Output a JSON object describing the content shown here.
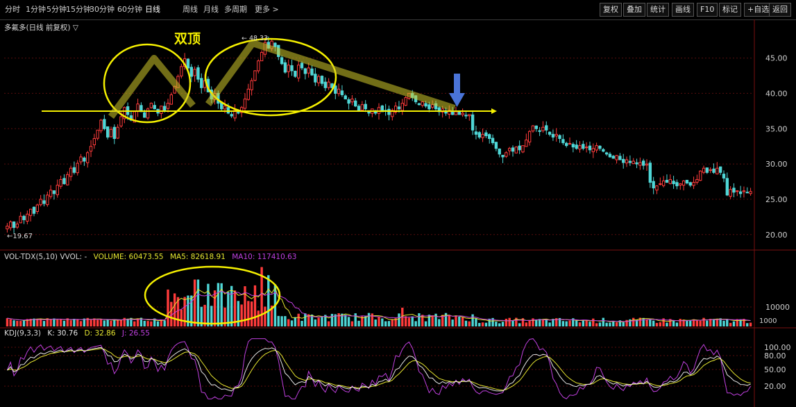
{
  "toolbar": {
    "periods": [
      "分时",
      "1分钟",
      "5分钟",
      "15分钟",
      "30分钟",
      "60分钟",
      "日线",
      "周线",
      "月线",
      "多周期",
      "更多 >"
    ],
    "active_period": "日线",
    "right_buttons": [
      "复权",
      "叠加",
      "统计",
      "画线",
      "F10",
      "标记",
      "+自选",
      "返回"
    ]
  },
  "main_panel": {
    "title": "多氟多(日线 前复权) ▽",
    "annotation": "双顶",
    "high_label": "← 48.33",
    "low_label": "←19.67"
  },
  "vol_panel": {
    "title_prefix": "VOL-TDX(5,10) VVOL: -",
    "volume_text": "VOLUME: 60473.55",
    "ma5_text": "MA5: 82618.91",
    "ma10_text": "MA10: 117410.63"
  },
  "kdj_panel": {
    "title_prefix": "KDJ(9,3,3)",
    "k_text": "K: 30.76",
    "d_text": "D: 32.86",
    "j_text": "J: 26.55"
  },
  "colors": {
    "up": "#ff3b3b",
    "down": "#4fd6d6",
    "grid": "#5a0d0d",
    "annotation": "#f5f000",
    "arrow": "#4a74d8",
    "k_line": "#e8e8e8",
    "d_line": "#e6e630",
    "j_line": "#c040e0"
  },
  "chart_data": {
    "type": "candlestick",
    "price_axis": {
      "ticks": [
        45.0,
        40.0,
        35.0,
        30.0,
        25.0,
        20.0
      ],
      "ylim": [
        18.6,
        48.5
      ]
    },
    "vol_axis": {
      "ticks": [
        "10000",
        "1000"
      ]
    },
    "kdj_axis": {
      "ticks": [
        "100.00",
        "80.00",
        "50.00",
        "20.00"
      ],
      "ylim": [
        -5,
        110
      ]
    },
    "closes": [
      21.2,
      21.8,
      21.0,
      21.5,
      22.6,
      22.1,
      22.9,
      23.6,
      23.0,
      24.2,
      25.0,
      24.4,
      25.6,
      26.3,
      25.8,
      27.0,
      27.8,
      27.2,
      28.5,
      29.4,
      28.8,
      30.1,
      31.0,
      30.4,
      31.6,
      32.5,
      33.6,
      34.8,
      36.2,
      35.0,
      33.8,
      34.9,
      33.6,
      35.2,
      36.7,
      38.0,
      37.0,
      36.2,
      37.4,
      38.5,
      37.4,
      36.6,
      37.8,
      38.6,
      37.8,
      37.2,
      38.2,
      37.6,
      38.6,
      39.8,
      41.0,
      42.4,
      43.8,
      44.9,
      43.6,
      42.4,
      43.4,
      42.0,
      40.8,
      41.8,
      40.2,
      39.2,
      40.0,
      38.6,
      37.8,
      38.2,
      37.2,
      36.8,
      37.6,
      37.2,
      38.0,
      39.2,
      40.6,
      41.8,
      43.2,
      44.6,
      45.8,
      47.2,
      46.4,
      47.4,
      46.6,
      45.2,
      44.2,
      43.0,
      44.0,
      43.2,
      42.4,
      44.0,
      43.6,
      42.8,
      43.6,
      42.6,
      41.6,
      42.4,
      41.4,
      40.8,
      41.6,
      40.8,
      40.0,
      40.6,
      39.8,
      39.2,
      38.6,
      39.2,
      38.2,
      37.6,
      38.4,
      37.8,
      37.2,
      37.8,
      37.2,
      38.0,
      37.4,
      37.6,
      37.0,
      37.6,
      38.2,
      37.8,
      38.6,
      39.4,
      40.0,
      39.4,
      38.8,
      38.4,
      38.8,
      38.2,
      37.8,
      38.4,
      37.8,
      37.4,
      37.8,
      37.2,
      37.6,
      37.0,
      37.4,
      37.0,
      37.2,
      36.8,
      37.0,
      34.8,
      34.2,
      33.8,
      34.2,
      34.0,
      33.6,
      33.0,
      32.2,
      31.4,
      31.0,
      31.6,
      32.2,
      31.8,
      32.4,
      32.0,
      32.6,
      33.4,
      34.6,
      35.4,
      35.0,
      34.6,
      35.2,
      34.8,
      34.2,
      33.8,
      34.2,
      33.6,
      33.0,
      32.6,
      32.9,
      32.4,
      32.2,
      32.6,
      32.2,
      32.4,
      32.0,
      32.2,
      32.6,
      32.2,
      31.8,
      31.4,
      31.0,
      30.8,
      31.2,
      30.6,
      30.2,
      30.6,
      30.2,
      30.4,
      30.0,
      30.2,
      29.8,
      30.0,
      27.4,
      26.6,
      26.9,
      27.2,
      27.6,
      27.4,
      27.8,
      27.2,
      26.9,
      27.2,
      27.6,
      27.3,
      27.0,
      27.4,
      27.8,
      29.0,
      29.4,
      28.8,
      29.2,
      28.8,
      29.4,
      28.8,
      28.0,
      25.6,
      26.4,
      26.0,
      26.2,
      25.8,
      26.2,
      25.9,
      26.1
    ],
    "high_value": 48.33,
    "low_value": 19.67,
    "volume": {
      "VOLUME": 60473.55,
      "MA5": 82618.91,
      "MA10": 117410.63
    },
    "kdj": {
      "K": 30.76,
      "D": 32.86,
      "J": 26.55
    }
  }
}
